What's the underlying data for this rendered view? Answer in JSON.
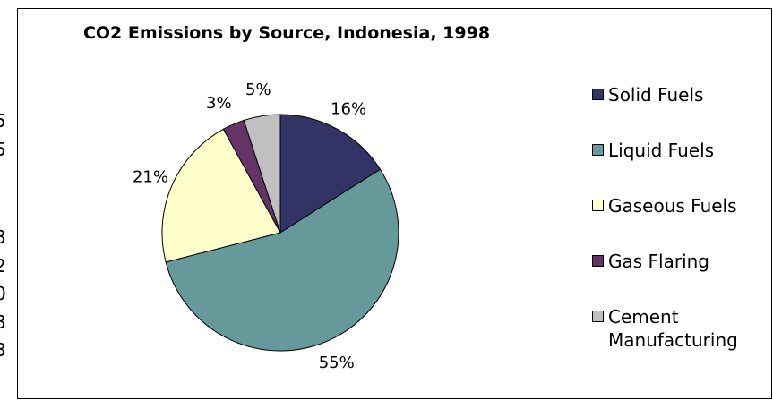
{
  "left_strip_fragments": [
    "5",
    "5",
    "3",
    "2",
    "0",
    "3",
    "3"
  ],
  "chart_data": {
    "type": "pie",
    "title": "CO2 Emissions by Source, Indonesia, 1998",
    "legend_position": "right",
    "slices": [
      {
        "label": "Solid Fuels",
        "value": 16,
        "display": "16%",
        "color": "#333366"
      },
      {
        "label": "Liquid Fuels",
        "value": 55,
        "display": "55%",
        "color": "#669999"
      },
      {
        "label": "Gaseous Fuels",
        "value": 21,
        "display": "21%",
        "color": "#FFFFCC"
      },
      {
        "label": "Gas Flaring",
        "value": 3,
        "display": "3%",
        "color": "#663366"
      },
      {
        "label": "Cement Manufacturing",
        "value": 5,
        "display": "5%",
        "color": "#C0C0C0"
      }
    ]
  }
}
